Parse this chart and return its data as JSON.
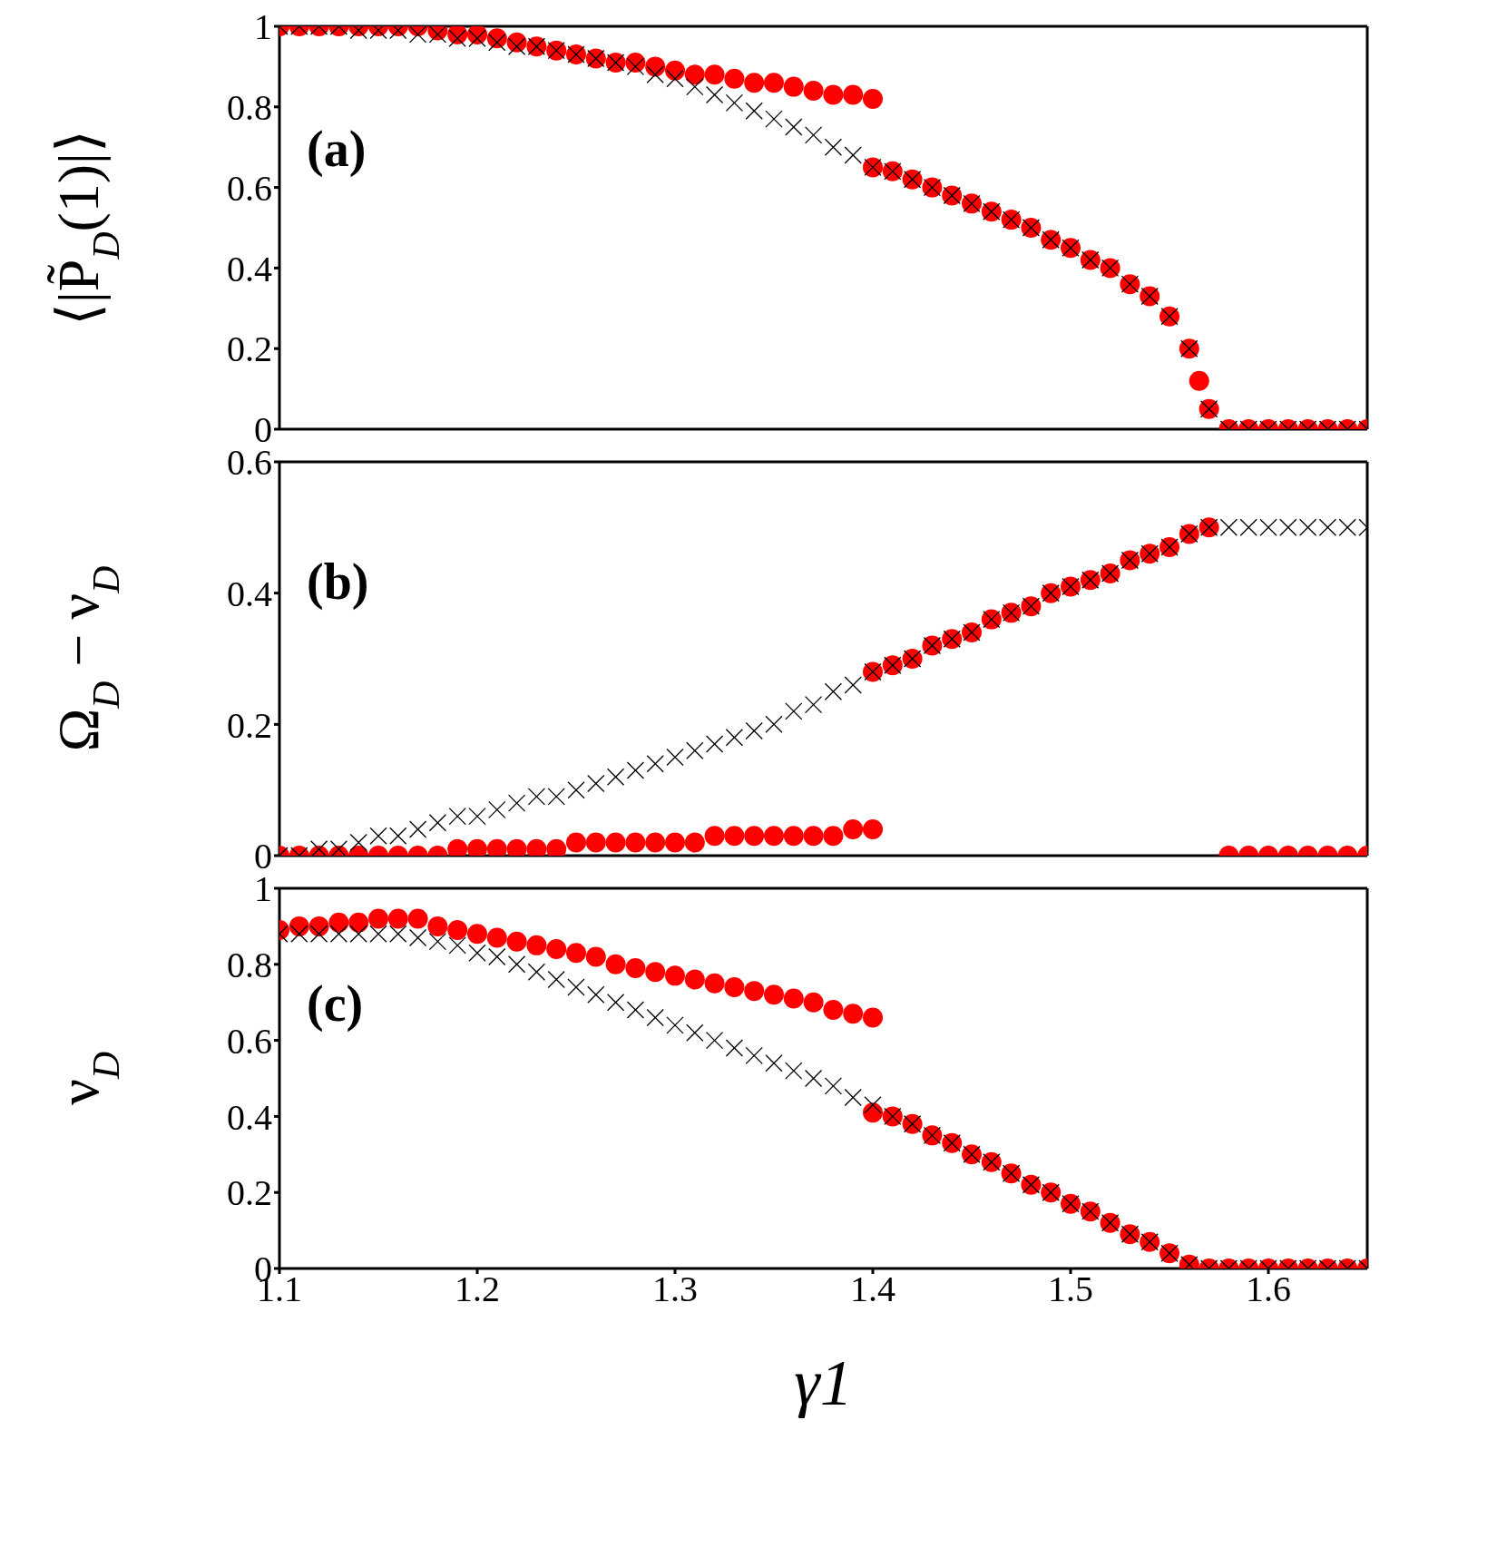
{
  "chart_data": [
    {
      "type": "scatter",
      "ylabel": "⟨|P̃$_{D}$(1)|⟩",
      "annotations": [
        "(a)"
      ],
      "xlim": [
        1.1,
        1.65
      ],
      "xticks": [
        1.1,
        1.2,
        1.3,
        1.4,
        1.5,
        1.6
      ],
      "ylim": [
        0,
        1
      ],
      "yticks": [
        0,
        0.2,
        0.4,
        0.6,
        0.8,
        1
      ],
      "tick_labels": "y",
      "series": [
        {
          "color": "#000000",
          "marker": "cross",
          "x": [
            1.1,
            1.11,
            1.12,
            1.13,
            1.14,
            1.15,
            1.16,
            1.17,
            1.18,
            1.19,
            1.2,
            1.21,
            1.22,
            1.23,
            1.24,
            1.25,
            1.26,
            1.27,
            1.28,
            1.29,
            1.3,
            1.31,
            1.32,
            1.33,
            1.34,
            1.35,
            1.36,
            1.37,
            1.38,
            1.39,
            1.4,
            1.41,
            1.42,
            1.43,
            1.44,
            1.45,
            1.46,
            1.47,
            1.48,
            1.49,
            1.5,
            1.51,
            1.52,
            1.53,
            1.54,
            1.55,
            1.56,
            1.57,
            1.58,
            1.59,
            1.6,
            1.61,
            1.62,
            1.63,
            1.64,
            1.65
          ],
          "values": [
            1,
            1,
            1,
            1,
            0.99,
            0.99,
            0.99,
            0.98,
            0.98,
            0.97,
            0.97,
            0.96,
            0.95,
            0.95,
            0.94,
            0.93,
            0.92,
            0.91,
            0.9,
            0.88,
            0.87,
            0.85,
            0.83,
            0.81,
            0.79,
            0.77,
            0.75,
            0.73,
            0.7,
            0.68,
            0.65,
            0.64,
            0.62,
            0.6,
            0.58,
            0.56,
            0.54,
            0.52,
            0.5,
            0.47,
            0.45,
            0.42,
            0.4,
            0.36,
            0.33,
            0.28,
            0.2,
            0.05,
            0,
            0,
            0,
            0,
            0,
            0,
            0,
            0
          ]
        },
        {
          "color": "#ff0000",
          "marker": "circle",
          "x": [
            1.1,
            1.11,
            1.12,
            1.13,
            1.14,
            1.15,
            1.16,
            1.17,
            1.18,
            1.19,
            1.2,
            1.21,
            1.22,
            1.23,
            1.24,
            1.25,
            1.26,
            1.27,
            1.28,
            1.29,
            1.3,
            1.31,
            1.32,
            1.33,
            1.34,
            1.35,
            1.36,
            1.37,
            1.38,
            1.39,
            1.4
          ],
          "values": [
            1,
            1,
            1,
            1,
            1,
            1,
            1,
            1,
            0.99,
            0.98,
            0.98,
            0.97,
            0.96,
            0.95,
            0.94,
            0.93,
            0.92,
            0.91,
            0.91,
            0.9,
            0.89,
            0.88,
            0.88,
            0.87,
            0.86,
            0.86,
            0.85,
            0.84,
            0.83,
            0.83,
            0.82
          ]
        },
        {
          "color": "#ff0000",
          "marker": "circle",
          "x": [
            1.4,
            1.41,
            1.42,
            1.43,
            1.44,
            1.45,
            1.46,
            1.47,
            1.48,
            1.49,
            1.5,
            1.51,
            1.52,
            1.53,
            1.54,
            1.55,
            1.56,
            1.565,
            1.57,
            1.58,
            1.59,
            1.6,
            1.61,
            1.62,
            1.63,
            1.64,
            1.65
          ],
          "values": [
            0.65,
            0.64,
            0.62,
            0.6,
            0.58,
            0.56,
            0.54,
            0.52,
            0.5,
            0.47,
            0.45,
            0.42,
            0.4,
            0.36,
            0.33,
            0.28,
            0.2,
            0.12,
            0.05,
            0,
            0,
            0,
            0,
            0,
            0,
            0,
            0
          ]
        }
      ]
    },
    {
      "type": "scatter",
      "ylabel": "Ω$_{D}$ − ν$_{D}$",
      "annotations": [
        "(b)"
      ],
      "xlim": [
        1.1,
        1.65
      ],
      "xticks": [
        1.1,
        1.2,
        1.3,
        1.4,
        1.5,
        1.6
      ],
      "ylim": [
        0,
        0.6
      ],
      "yticks": [
        0,
        0.2,
        0.4,
        0.6
      ],
      "tick_labels": "y",
      "series": [
        {
          "color": "#000000",
          "marker": "cross",
          "x": [
            1.1,
            1.11,
            1.12,
            1.13,
            1.14,
            1.15,
            1.16,
            1.17,
            1.18,
            1.19,
            1.2,
            1.21,
            1.22,
            1.23,
            1.24,
            1.25,
            1.26,
            1.27,
            1.28,
            1.29,
            1.3,
            1.31,
            1.32,
            1.33,
            1.34,
            1.35,
            1.36,
            1.37,
            1.38,
            1.39,
            1.4,
            1.41,
            1.42,
            1.43,
            1.44,
            1.45,
            1.46,
            1.47,
            1.48,
            1.49,
            1.5,
            1.51,
            1.52,
            1.53,
            1.54,
            1.55,
            1.56,
            1.57,
            1.58,
            1.59,
            1.6,
            1.61,
            1.62,
            1.63,
            1.64,
            1.65
          ],
          "values": [
            0,
            0,
            0.01,
            0.01,
            0.02,
            0.03,
            0.03,
            0.04,
            0.05,
            0.06,
            0.06,
            0.07,
            0.08,
            0.09,
            0.09,
            0.1,
            0.11,
            0.12,
            0.13,
            0.14,
            0.15,
            0.16,
            0.17,
            0.18,
            0.19,
            0.2,
            0.22,
            0.23,
            0.25,
            0.26,
            0.28,
            0.29,
            0.3,
            0.32,
            0.33,
            0.34,
            0.36,
            0.37,
            0.38,
            0.4,
            0.41,
            0.42,
            0.43,
            0.45,
            0.46,
            0.47,
            0.49,
            0.5,
            0.5,
            0.5,
            0.5,
            0.5,
            0.5,
            0.5,
            0.5,
            0.5
          ]
        },
        {
          "color": "#ff0000",
          "marker": "circle",
          "x": [
            1.1,
            1.11,
            1.12,
            1.13,
            1.14,
            1.15,
            1.16,
            1.17,
            1.18,
            1.19,
            1.2,
            1.21,
            1.22,
            1.23,
            1.24,
            1.25,
            1.26,
            1.27,
            1.28,
            1.29,
            1.3,
            1.31,
            1.32,
            1.33,
            1.34,
            1.35,
            1.36,
            1.37,
            1.38,
            1.39,
            1.4
          ],
          "values": [
            0,
            0,
            0,
            0,
            0,
            0,
            0,
            0,
            0,
            0.01,
            0.01,
            0.01,
            0.01,
            0.01,
            0.01,
            0.02,
            0.02,
            0.02,
            0.02,
            0.02,
            0.02,
            0.02,
            0.03,
            0.03,
            0.03,
            0.03,
            0.03,
            0.03,
            0.03,
            0.04,
            0.04
          ]
        },
        {
          "color": "#ff0000",
          "marker": "circle",
          "x": [
            1.4,
            1.41,
            1.42,
            1.43,
            1.44,
            1.45,
            1.46,
            1.47,
            1.48,
            1.49,
            1.5,
            1.51,
            1.52,
            1.53,
            1.54,
            1.55,
            1.56,
            1.57,
            1.58,
            1.59,
            1.6,
            1.61,
            1.62,
            1.63,
            1.64,
            1.65
          ],
          "values": [
            0.28,
            0.29,
            0.3,
            0.32,
            0.33,
            0.34,
            0.36,
            0.37,
            0.38,
            0.4,
            0.41,
            0.42,
            0.43,
            0.45,
            0.46,
            0.47,
            0.49,
            0.5,
            0,
            0,
            0,
            0,
            0,
            0,
            0,
            0
          ]
        }
      ]
    },
    {
      "type": "scatter",
      "xlabel": "γ1",
      "ylabel": "ν$_{D}$",
      "annotations": [
        "(c)"
      ],
      "xlim": [
        1.1,
        1.65
      ],
      "xticks": [
        1.1,
        1.2,
        1.3,
        1.4,
        1.5,
        1.6
      ],
      "ylim": [
        0,
        1
      ],
      "yticks": [
        0,
        0.2,
        0.4,
        0.6,
        0.8,
        1
      ],
      "series": [
        {
          "color": "#000000",
          "marker": "cross",
          "x": [
            1.1,
            1.11,
            1.12,
            1.13,
            1.14,
            1.15,
            1.16,
            1.17,
            1.18,
            1.19,
            1.2,
            1.21,
            1.22,
            1.23,
            1.24,
            1.25,
            1.26,
            1.27,
            1.28,
            1.29,
            1.3,
            1.31,
            1.32,
            1.33,
            1.34,
            1.35,
            1.36,
            1.37,
            1.38,
            1.39,
            1.4,
            1.41,
            1.42,
            1.43,
            1.44,
            1.45,
            1.46,
            1.47,
            1.48,
            1.49,
            1.5,
            1.51,
            1.52,
            1.53,
            1.54,
            1.55,
            1.56,
            1.57,
            1.58,
            1.59,
            1.6,
            1.61,
            1.62,
            1.63,
            1.64,
            1.65
          ],
          "values": [
            0.88,
            0.88,
            0.88,
            0.88,
            0.88,
            0.88,
            0.88,
            0.87,
            0.86,
            0.85,
            0.83,
            0.82,
            0.8,
            0.78,
            0.76,
            0.74,
            0.72,
            0.7,
            0.68,
            0.66,
            0.64,
            0.62,
            0.6,
            0.58,
            0.56,
            0.54,
            0.52,
            0.5,
            0.48,
            0.45,
            0.43,
            0.4,
            0.38,
            0.35,
            0.33,
            0.3,
            0.28,
            0.25,
            0.22,
            0.2,
            0.17,
            0.15,
            0.12,
            0.09,
            0.07,
            0.04,
            0.01,
            0,
            0,
            0,
            0,
            0,
            0,
            0,
            0,
            0
          ]
        },
        {
          "color": "#ff0000",
          "marker": "circle",
          "x": [
            1.1,
            1.11,
            1.12,
            1.13,
            1.14,
            1.15,
            1.16,
            1.17,
            1.18,
            1.19,
            1.2,
            1.21,
            1.22,
            1.23,
            1.24,
            1.25,
            1.26,
            1.27,
            1.28,
            1.29,
            1.3,
            1.31,
            1.32,
            1.33,
            1.34,
            1.35,
            1.36,
            1.37,
            1.38,
            1.39,
            1.4
          ],
          "values": [
            0.89,
            0.9,
            0.9,
            0.91,
            0.91,
            0.92,
            0.92,
            0.92,
            0.9,
            0.89,
            0.88,
            0.87,
            0.86,
            0.85,
            0.84,
            0.83,
            0.82,
            0.8,
            0.79,
            0.78,
            0.77,
            0.76,
            0.75,
            0.74,
            0.73,
            0.72,
            0.71,
            0.7,
            0.68,
            0.67,
            0.66
          ]
        },
        {
          "color": "#ff0000",
          "marker": "circle",
          "x": [
            1.4,
            1.41,
            1.42,
            1.43,
            1.44,
            1.45,
            1.46,
            1.47,
            1.48,
            1.49,
            1.5,
            1.51,
            1.52,
            1.53,
            1.54,
            1.55,
            1.56,
            1.57,
            1.58,
            1.59,
            1.6,
            1.61,
            1.62,
            1.63,
            1.64,
            1.65
          ],
          "values": [
            0.41,
            0.4,
            0.38,
            0.35,
            0.33,
            0.3,
            0.28,
            0.25,
            0.22,
            0.2,
            0.17,
            0.15,
            0.12,
            0.09,
            0.07,
            0.04,
            0.01,
            0,
            0,
            0,
            0,
            0,
            0,
            0,
            0,
            0
          ]
        }
      ]
    }
  ]
}
